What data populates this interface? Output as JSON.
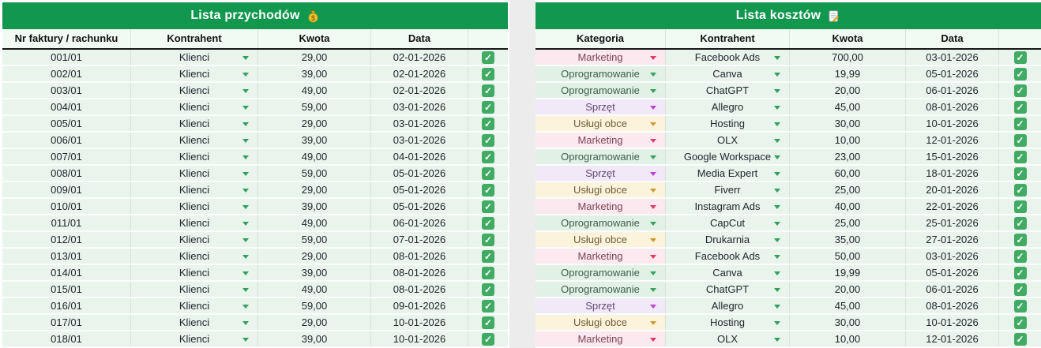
{
  "theme": {
    "header_green": "#12974f",
    "row_mint": "#e8f4ec",
    "grid_line": "#d8e1da",
    "checkbox_green": "#41ab64",
    "dropdown_arrow_green": "#31a05f"
  },
  "checkbox": {
    "glyph": "✓"
  },
  "income_table": {
    "title": "Lista przychodów",
    "title_icon": "money-bag",
    "columns": [
      "Nr faktury / rachunku",
      "Kontrahent",
      "Kwota",
      "Data",
      ""
    ],
    "rows": [
      {
        "invoice": "001/01",
        "contractor": "Klienci",
        "amount": "29,00",
        "date": "02-01-2026",
        "checked": true
      },
      {
        "invoice": "002/01",
        "contractor": "Klienci",
        "amount": "39,00",
        "date": "02-01-2026",
        "checked": true
      },
      {
        "invoice": "003/01",
        "contractor": "Klienci",
        "amount": "49,00",
        "date": "02-01-2026",
        "checked": true
      },
      {
        "invoice": "004/01",
        "contractor": "Klienci",
        "amount": "59,00",
        "date": "03-01-2026",
        "checked": true
      },
      {
        "invoice": "005/01",
        "contractor": "Klienci",
        "amount": "29,00",
        "date": "03-01-2026",
        "checked": true
      },
      {
        "invoice": "006/01",
        "contractor": "Klienci",
        "amount": "39,00",
        "date": "03-01-2026",
        "checked": true
      },
      {
        "invoice": "007/01",
        "contractor": "Klienci",
        "amount": "49,00",
        "date": "04-01-2026",
        "checked": true
      },
      {
        "invoice": "008/01",
        "contractor": "Klienci",
        "amount": "59,00",
        "date": "05-01-2026",
        "checked": true
      },
      {
        "invoice": "009/01",
        "contractor": "Klienci",
        "amount": "29,00",
        "date": "05-01-2026",
        "checked": true
      },
      {
        "invoice": "010/01",
        "contractor": "Klienci",
        "amount": "39,00",
        "date": "05-01-2026",
        "checked": true
      },
      {
        "invoice": "011/01",
        "contractor": "Klienci",
        "amount": "49,00",
        "date": "06-01-2026",
        "checked": true
      },
      {
        "invoice": "012/01",
        "contractor": "Klienci",
        "amount": "59,00",
        "date": "07-01-2026",
        "checked": true
      },
      {
        "invoice": "013/01",
        "contractor": "Klienci",
        "amount": "29,00",
        "date": "08-01-2026",
        "checked": true
      },
      {
        "invoice": "014/01",
        "contractor": "Klienci",
        "amount": "39,00",
        "date": "08-01-2026",
        "checked": true
      },
      {
        "invoice": "015/01",
        "contractor": "Klienci",
        "amount": "49,00",
        "date": "08-01-2026",
        "checked": true
      },
      {
        "invoice": "016/01",
        "contractor": "Klienci",
        "amount": "59,00",
        "date": "09-01-2026",
        "checked": true
      },
      {
        "invoice": "017/01",
        "contractor": "Klienci",
        "amount": "29,00",
        "date": "10-01-2026",
        "checked": true
      },
      {
        "invoice": "018/01",
        "contractor": "Klienci",
        "amount": "39,00",
        "date": "10-01-2026",
        "checked": true
      }
    ]
  },
  "expense_table": {
    "title": "Lista kosztów",
    "title_icon": "memo",
    "columns": [
      "Kategoria",
      "Kontrahent",
      "Kwota",
      "Data",
      ""
    ],
    "categories": {
      "Marketing": {
        "bg": "#fbe9ef",
        "text": "#7e4455",
        "arrow": "#e23a64"
      },
      "Oprogramowanie": {
        "bg": "#e1f1e6",
        "text": "#3f5f4a",
        "arrow": "#35a15c"
      },
      "Sprzęt": {
        "bg": "#f1e9f8",
        "text": "#5d4a73",
        "arrow": "#bb43cf"
      },
      "Usługi obce": {
        "bg": "#fcf3dc",
        "text": "#6e5c35",
        "arrow": "#cc9a2a"
      }
    },
    "rows": [
      {
        "category": "Marketing",
        "contractor": "Facebook Ads",
        "amount": "700,00",
        "date": "03-01-2026",
        "checked": true
      },
      {
        "category": "Oprogramowanie",
        "contractor": "Canva",
        "amount": "19,99",
        "date": "05-01-2026",
        "checked": true
      },
      {
        "category": "Oprogramowanie",
        "contractor": "ChatGPT",
        "amount": "20,00",
        "date": "06-01-2026",
        "checked": true
      },
      {
        "category": "Sprzęt",
        "contractor": "Allegro",
        "amount": "45,00",
        "date": "08-01-2026",
        "checked": true
      },
      {
        "category": "Usługi obce",
        "contractor": "Hosting",
        "amount": "30,00",
        "date": "10-01-2026",
        "checked": true
      },
      {
        "category": "Marketing",
        "contractor": "OLX",
        "amount": "10,00",
        "date": "12-01-2026",
        "checked": true
      },
      {
        "category": "Oprogramowanie",
        "contractor": "Google Workspace",
        "amount": "23,00",
        "date": "15-01-2026",
        "checked": true
      },
      {
        "category": "Sprzęt",
        "contractor": "Media Expert",
        "amount": "60,00",
        "date": "18-01-2026",
        "checked": true
      },
      {
        "category": "Usługi obce",
        "contractor": "Fiverr",
        "amount": "25,00",
        "date": "20-01-2026",
        "checked": true
      },
      {
        "category": "Marketing",
        "contractor": "Instagram Ads",
        "amount": "40,00",
        "date": "22-01-2026",
        "checked": true
      },
      {
        "category": "Oprogramowanie",
        "contractor": "CapCut",
        "amount": "25,00",
        "date": "25-01-2026",
        "checked": true
      },
      {
        "category": "Usługi obce",
        "contractor": "Drukarnia",
        "amount": "35,00",
        "date": "27-01-2026",
        "checked": true
      },
      {
        "category": "Marketing",
        "contractor": "Facebook Ads",
        "amount": "50,00",
        "date": "03-01-2026",
        "checked": true
      },
      {
        "category": "Oprogramowanie",
        "contractor": "Canva",
        "amount": "19,99",
        "date": "05-01-2026",
        "checked": true
      },
      {
        "category": "Oprogramowanie",
        "contractor": "ChatGPT",
        "amount": "20,00",
        "date": "06-01-2026",
        "checked": true
      },
      {
        "category": "Sprzęt",
        "contractor": "Allegro",
        "amount": "45,00",
        "date": "08-01-2026",
        "checked": true
      },
      {
        "category": "Usługi obce",
        "contractor": "Hosting",
        "amount": "30,00",
        "date": "10-01-2026",
        "checked": true
      },
      {
        "category": "Marketing",
        "contractor": "OLX",
        "amount": "10,00",
        "date": "12-01-2026",
        "checked": true
      }
    ]
  }
}
